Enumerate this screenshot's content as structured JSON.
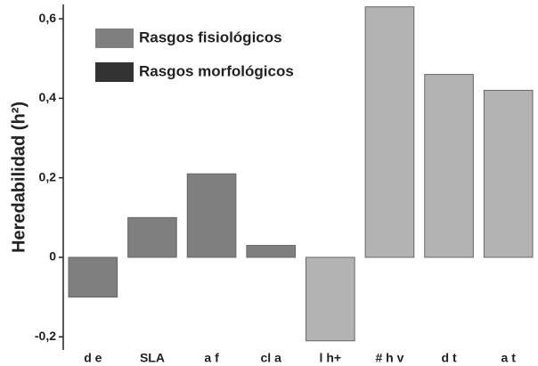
{
  "chart_data": {
    "type": "bar",
    "ylabel": "Heredabilidad (h²)",
    "categories": [
      "d e",
      "SLA",
      "a f",
      "cl a",
      "l h+",
      "# h v",
      "d t",
      "a t"
    ],
    "values": [
      -0.1,
      0.1,
      0.21,
      0.03,
      -0.21,
      0.63,
      0.46,
      0.42
    ],
    "colors": [
      "#7f7f7f",
      "#7f7f7f",
      "#7f7f7f",
      "#7f7f7f",
      "#b3b3b3",
      "#b3b3b3",
      "#b3b3b3",
      "#b3b3b3"
    ],
    "legend": [
      {
        "name": "Rasgos fisiológicos",
        "color": "#7f7f7f"
      },
      {
        "name": "Rasgos morfológicos",
        "color": "#333333"
      }
    ],
    "legend_position": "upper left",
    "ylim": [
      -0.233,
      0.636
    ],
    "yticks": [
      {
        "value": -0.2,
        "label": "-0,2"
      },
      0,
      {
        "value": 0.2,
        "label": "0,2"
      },
      {
        "value": 0.4,
        "label": "0,4"
      },
      {
        "value": 0.6,
        "label": "0,6"
      }
    ],
    "grid": false
  }
}
